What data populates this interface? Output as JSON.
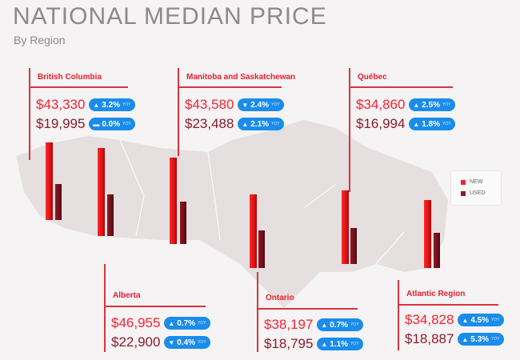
{
  "header": {
    "title": "NATIONAL MEDIAN PRICE",
    "subtitle": "By Region"
  },
  "legend": {
    "new": "NEW",
    "used": "USED",
    "new_color": "#f02535",
    "used_color": "#8a1c2e"
  },
  "yoy_label": "YOY",
  "regions": [
    {
      "name": "British Columbia",
      "new_price": "$43,330",
      "new_change": "3.2%",
      "new_dir": "up",
      "used_price": "$19,995",
      "used_change": "0.0%",
      "used_dir": "flat"
    },
    {
      "name": "Manitoba and Saskatchewan",
      "new_price": "$43,580",
      "new_change": "2.4%",
      "new_dir": "down",
      "used_price": "$23,488",
      "used_change": "2.1%",
      "used_dir": "up"
    },
    {
      "name": "Québec",
      "new_price": "$34,860",
      "new_change": "2.5%",
      "new_dir": "up",
      "used_price": "$16,994",
      "used_change": "1.8%",
      "used_dir": "up"
    },
    {
      "name": "Alberta",
      "new_price": "$46,955",
      "new_change": "0.7%",
      "new_dir": "up",
      "used_price": "$22,900",
      "used_change": "0.4%",
      "used_dir": "down"
    },
    {
      "name": "Ontario",
      "new_price": "$38,197",
      "new_change": "0.7%",
      "new_dir": "up",
      "used_price": "$18,795",
      "used_change": "1.1%",
      "used_dir": "up"
    },
    {
      "name": "Atlantic Region",
      "new_price": "$34,828",
      "new_change": "4.5%",
      "new_dir": "up",
      "used_price": "$18,887",
      "used_change": "5.3%",
      "used_dir": "up"
    }
  ]
}
